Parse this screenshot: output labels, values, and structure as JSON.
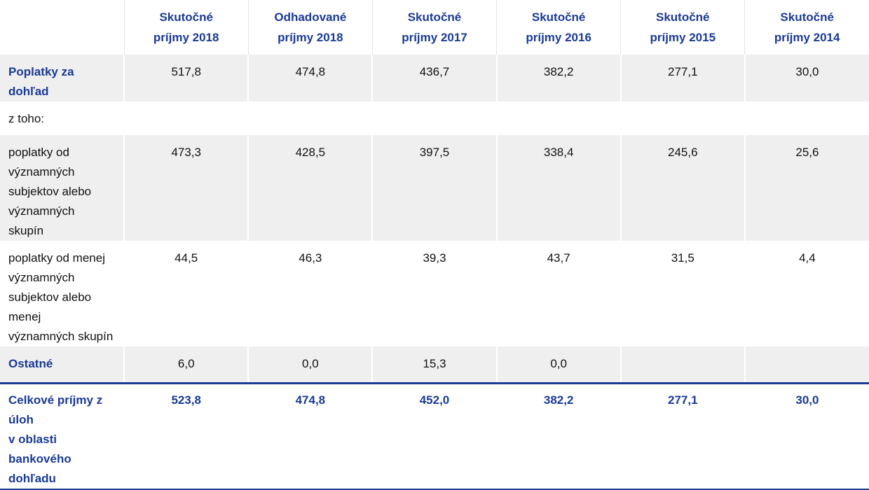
{
  "table": {
    "columns": [
      [
        "Skutočné",
        "príjmy 2018"
      ],
      [
        "Odhadované",
        "príjmy 2018"
      ],
      [
        "Skutočné",
        "príjmy 2017"
      ],
      [
        "Skutočné",
        "príjmy 2016"
      ],
      [
        "Skutočné",
        "príjmy 2015"
      ],
      [
        "Skutočné",
        "príjmy 2014"
      ]
    ],
    "rows": [
      {
        "label": [
          "Poplatky za dohľad"
        ],
        "values": [
          "517,8",
          "474,8",
          "436,7",
          "382,2",
          "277,1",
          "30,0"
        ]
      },
      {
        "label": [
          "z toho:"
        ],
        "values": [
          null,
          null,
          null,
          null,
          null,
          null
        ]
      },
      {
        "label": [
          "poplatky od významných",
          "subjektov alebo významných",
          "skupín"
        ],
        "values": [
          "473,3",
          "428,5",
          "397,5",
          "338,4",
          "245,6",
          "25,6"
        ]
      },
      {
        "label": [
          "poplatky od menej významných",
          "subjektov alebo menej",
          "významných skupín"
        ],
        "values": [
          "44,5",
          "46,3",
          "39,3",
          "43,7",
          "31,5",
          "4,4"
        ]
      },
      {
        "label": [
          "Ostatné"
        ],
        "values": [
          "6,0",
          "0,0",
          "15,3",
          "0,0",
          null,
          null
        ]
      },
      {
        "label": [
          "Celkové príjmy z úloh",
          "v oblasti bankového dohľadu"
        ],
        "values": [
          "523,8",
          "474,8",
          "452,0",
          "382,2",
          "277,1",
          "30,0"
        ]
      }
    ]
  }
}
